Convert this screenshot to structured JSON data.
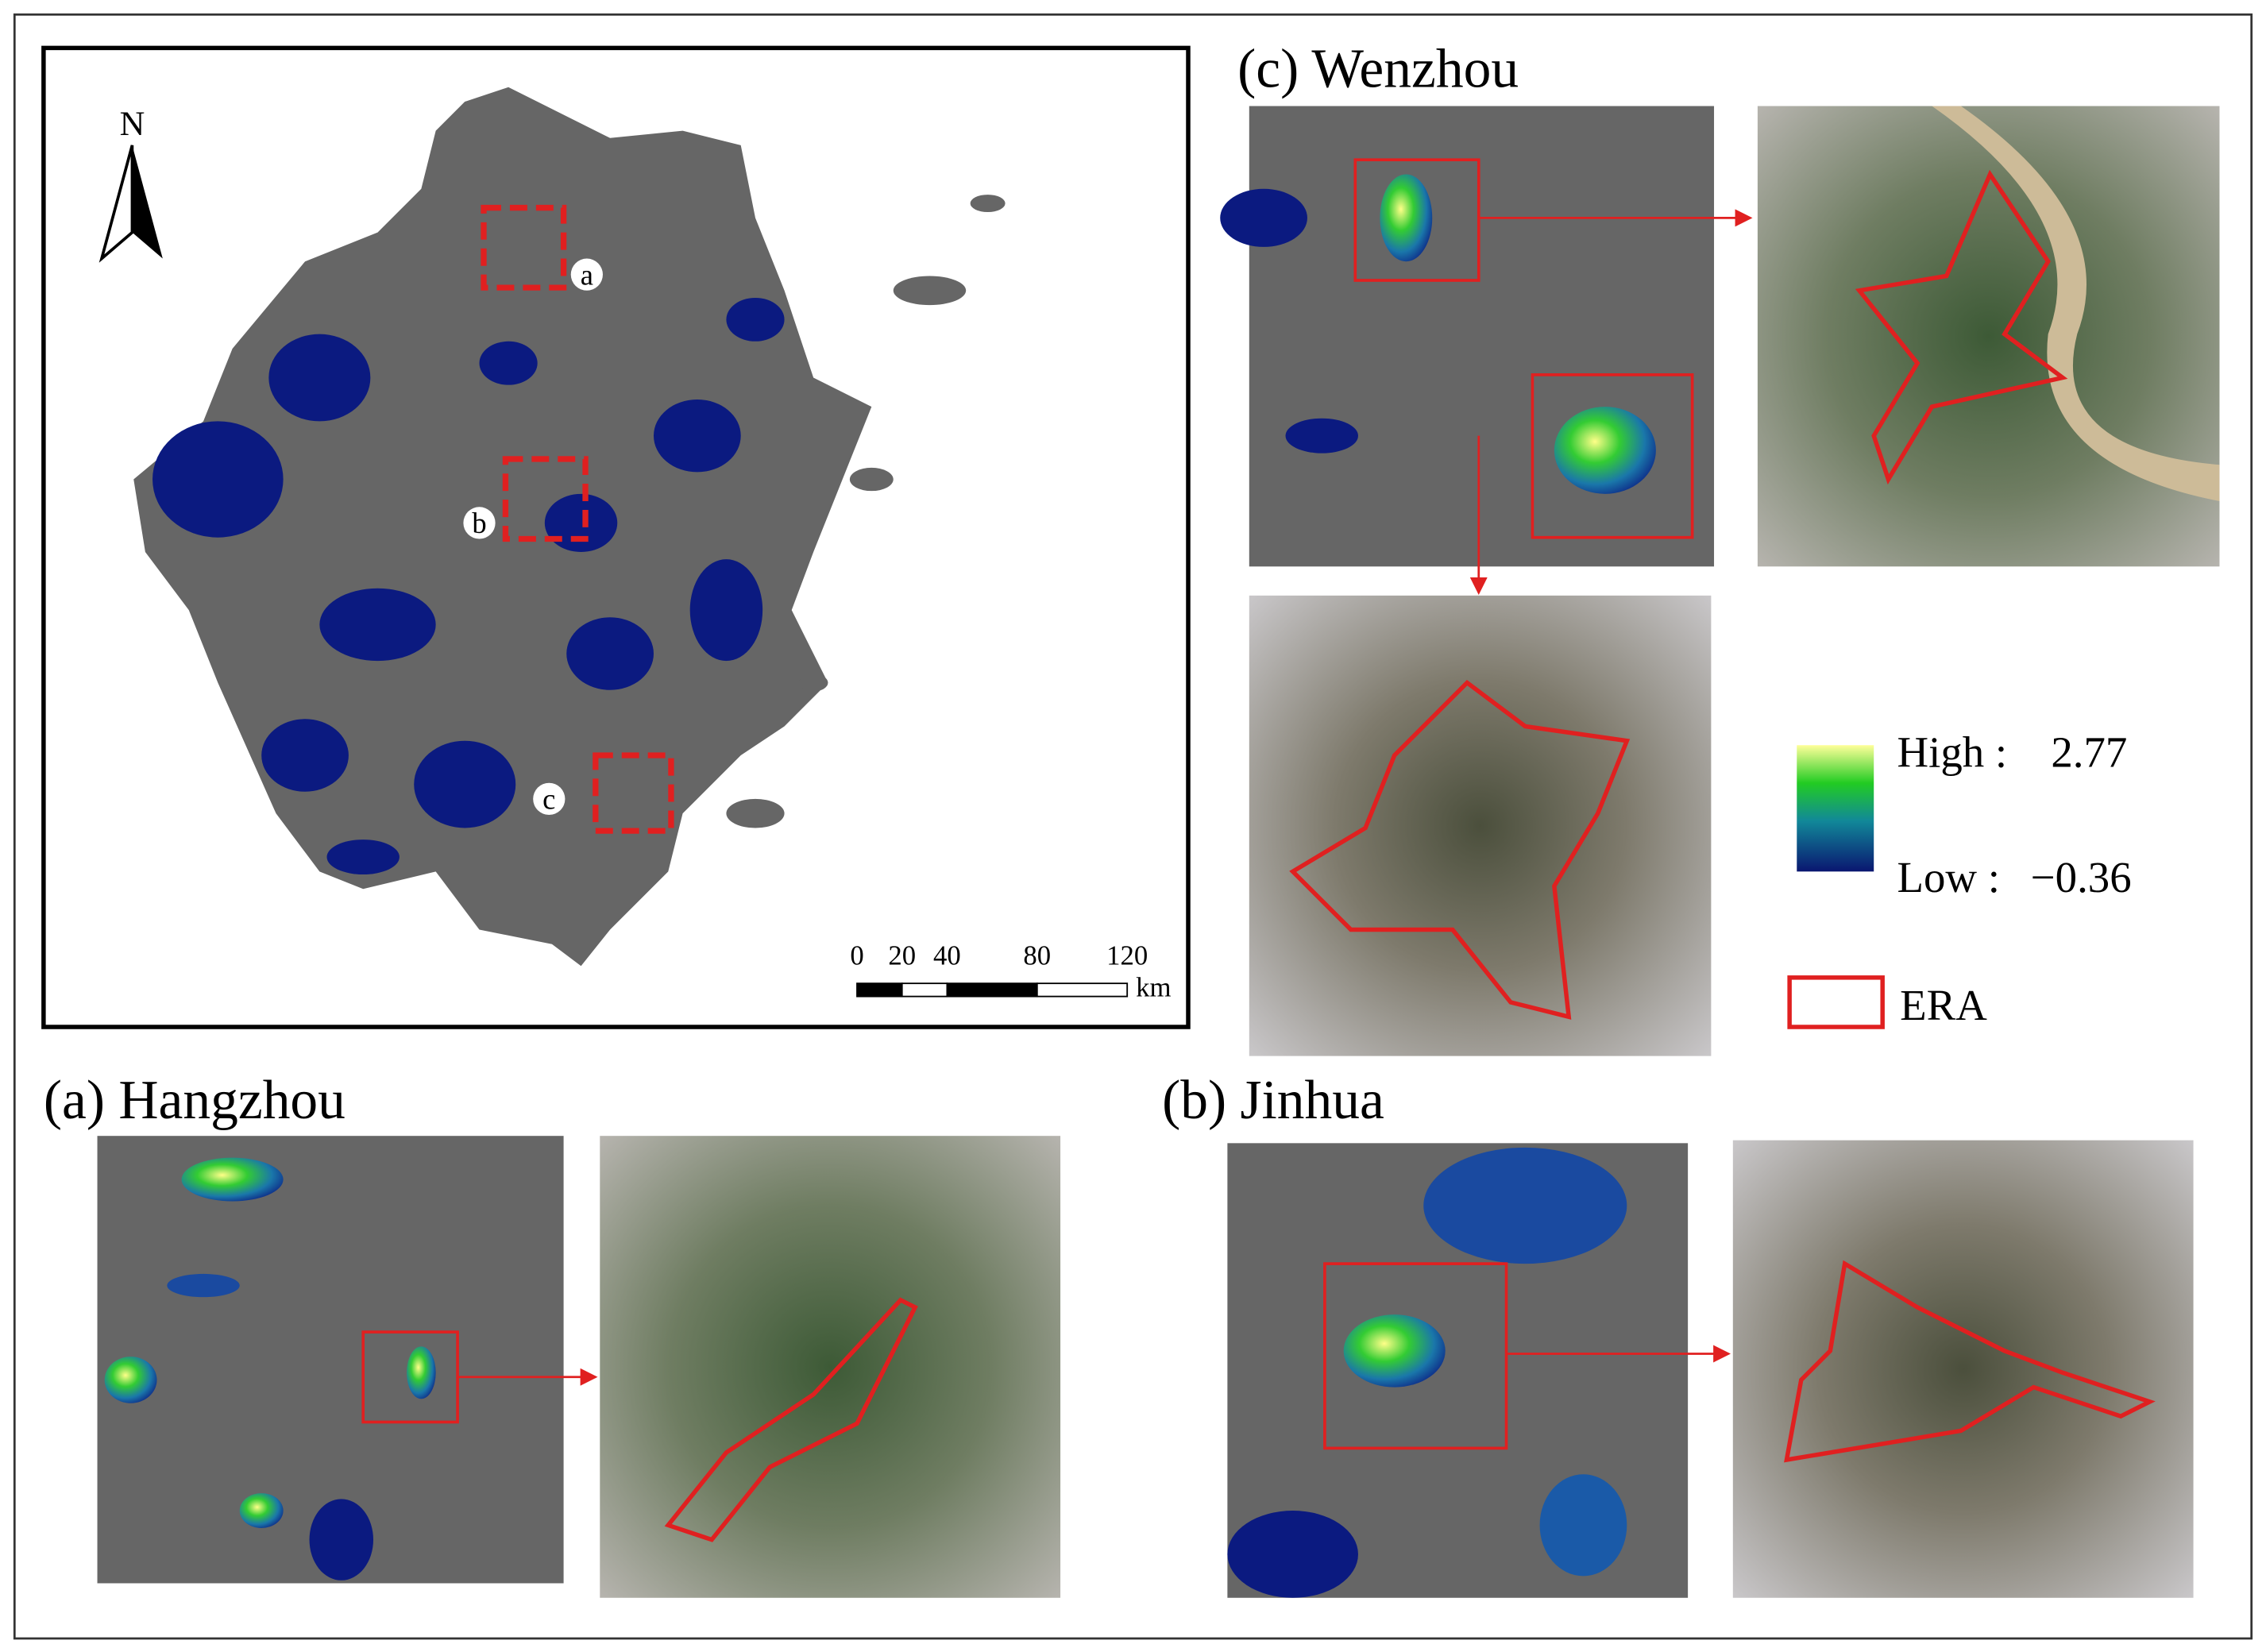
{
  "north": "N",
  "overview": {
    "markers": [
      "a",
      "b",
      "c"
    ],
    "scale": {
      "ticks": [
        0,
        20,
        40,
        80,
        120
      ],
      "unit": "km"
    }
  },
  "panels": [
    {
      "title": "(c) Wenzhou"
    },
    {
      "title": "(a) Hangzhou"
    },
    {
      "title": "(b) Jinhua"
    }
  ],
  "legend": {
    "high_label": "High :",
    "high": "2.77",
    "low_label": "Low :",
    "low": "−0.36",
    "era": "ERA"
  }
}
